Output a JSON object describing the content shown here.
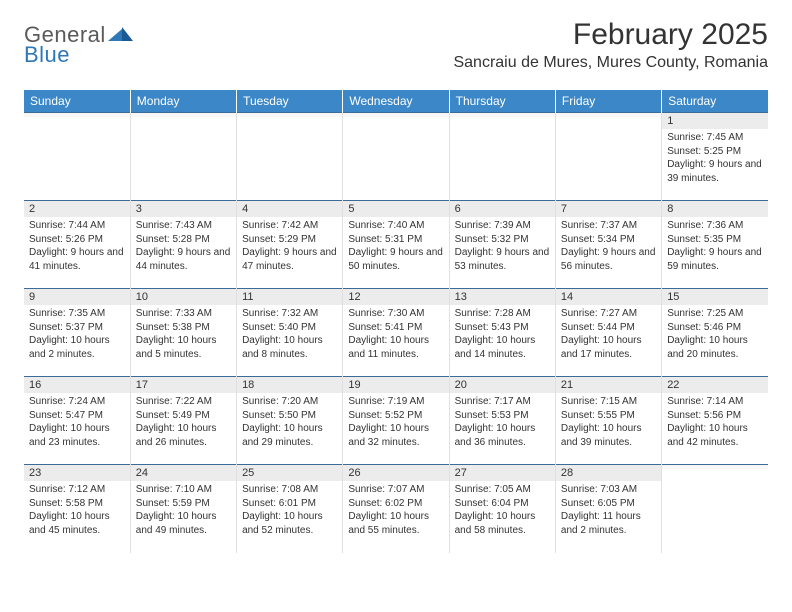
{
  "brand": {
    "part1": "General",
    "part2": "Blue"
  },
  "title": "February 2025",
  "location": "Sancraiu de Mures, Mures County, Romania",
  "columns": [
    "Sunday",
    "Monday",
    "Tuesday",
    "Wednesday",
    "Thursday",
    "Friday",
    "Saturday"
  ],
  "colors": {
    "header_bg": "#3b87c8",
    "header_text": "#ffffff",
    "daynum_bg": "#ececec",
    "row_divider": "#3b6b9a",
    "text": "#333333",
    "logo_gray": "#5a5a5a",
    "logo_blue": "#2f78b7"
  },
  "weeks": [
    [
      {
        "n": "",
        "sunrise": "",
        "sunset": "",
        "daylight": ""
      },
      {
        "n": "",
        "sunrise": "",
        "sunset": "",
        "daylight": ""
      },
      {
        "n": "",
        "sunrise": "",
        "sunset": "",
        "daylight": ""
      },
      {
        "n": "",
        "sunrise": "",
        "sunset": "",
        "daylight": ""
      },
      {
        "n": "",
        "sunrise": "",
        "sunset": "",
        "daylight": ""
      },
      {
        "n": "",
        "sunrise": "",
        "sunset": "",
        "daylight": ""
      },
      {
        "n": "1",
        "sunrise": "Sunrise: 7:45 AM",
        "sunset": "Sunset: 5:25 PM",
        "daylight": "Daylight: 9 hours and 39 minutes."
      }
    ],
    [
      {
        "n": "2",
        "sunrise": "Sunrise: 7:44 AM",
        "sunset": "Sunset: 5:26 PM",
        "daylight": "Daylight: 9 hours and 41 minutes."
      },
      {
        "n": "3",
        "sunrise": "Sunrise: 7:43 AM",
        "sunset": "Sunset: 5:28 PM",
        "daylight": "Daylight: 9 hours and 44 minutes."
      },
      {
        "n": "4",
        "sunrise": "Sunrise: 7:42 AM",
        "sunset": "Sunset: 5:29 PM",
        "daylight": "Daylight: 9 hours and 47 minutes."
      },
      {
        "n": "5",
        "sunrise": "Sunrise: 7:40 AM",
        "sunset": "Sunset: 5:31 PM",
        "daylight": "Daylight: 9 hours and 50 minutes."
      },
      {
        "n": "6",
        "sunrise": "Sunrise: 7:39 AM",
        "sunset": "Sunset: 5:32 PM",
        "daylight": "Daylight: 9 hours and 53 minutes."
      },
      {
        "n": "7",
        "sunrise": "Sunrise: 7:37 AM",
        "sunset": "Sunset: 5:34 PM",
        "daylight": "Daylight: 9 hours and 56 minutes."
      },
      {
        "n": "8",
        "sunrise": "Sunrise: 7:36 AM",
        "sunset": "Sunset: 5:35 PM",
        "daylight": "Daylight: 9 hours and 59 minutes."
      }
    ],
    [
      {
        "n": "9",
        "sunrise": "Sunrise: 7:35 AM",
        "sunset": "Sunset: 5:37 PM",
        "daylight": "Daylight: 10 hours and 2 minutes."
      },
      {
        "n": "10",
        "sunrise": "Sunrise: 7:33 AM",
        "sunset": "Sunset: 5:38 PM",
        "daylight": "Daylight: 10 hours and 5 minutes."
      },
      {
        "n": "11",
        "sunrise": "Sunrise: 7:32 AM",
        "sunset": "Sunset: 5:40 PM",
        "daylight": "Daylight: 10 hours and 8 minutes."
      },
      {
        "n": "12",
        "sunrise": "Sunrise: 7:30 AM",
        "sunset": "Sunset: 5:41 PM",
        "daylight": "Daylight: 10 hours and 11 minutes."
      },
      {
        "n": "13",
        "sunrise": "Sunrise: 7:28 AM",
        "sunset": "Sunset: 5:43 PM",
        "daylight": "Daylight: 10 hours and 14 minutes."
      },
      {
        "n": "14",
        "sunrise": "Sunrise: 7:27 AM",
        "sunset": "Sunset: 5:44 PM",
        "daylight": "Daylight: 10 hours and 17 minutes."
      },
      {
        "n": "15",
        "sunrise": "Sunrise: 7:25 AM",
        "sunset": "Sunset: 5:46 PM",
        "daylight": "Daylight: 10 hours and 20 minutes."
      }
    ],
    [
      {
        "n": "16",
        "sunrise": "Sunrise: 7:24 AM",
        "sunset": "Sunset: 5:47 PM",
        "daylight": "Daylight: 10 hours and 23 minutes."
      },
      {
        "n": "17",
        "sunrise": "Sunrise: 7:22 AM",
        "sunset": "Sunset: 5:49 PM",
        "daylight": "Daylight: 10 hours and 26 minutes."
      },
      {
        "n": "18",
        "sunrise": "Sunrise: 7:20 AM",
        "sunset": "Sunset: 5:50 PM",
        "daylight": "Daylight: 10 hours and 29 minutes."
      },
      {
        "n": "19",
        "sunrise": "Sunrise: 7:19 AM",
        "sunset": "Sunset: 5:52 PM",
        "daylight": "Daylight: 10 hours and 32 minutes."
      },
      {
        "n": "20",
        "sunrise": "Sunrise: 7:17 AM",
        "sunset": "Sunset: 5:53 PM",
        "daylight": "Daylight: 10 hours and 36 minutes."
      },
      {
        "n": "21",
        "sunrise": "Sunrise: 7:15 AM",
        "sunset": "Sunset: 5:55 PM",
        "daylight": "Daylight: 10 hours and 39 minutes."
      },
      {
        "n": "22",
        "sunrise": "Sunrise: 7:14 AM",
        "sunset": "Sunset: 5:56 PM",
        "daylight": "Daylight: 10 hours and 42 minutes."
      }
    ],
    [
      {
        "n": "23",
        "sunrise": "Sunrise: 7:12 AM",
        "sunset": "Sunset: 5:58 PM",
        "daylight": "Daylight: 10 hours and 45 minutes."
      },
      {
        "n": "24",
        "sunrise": "Sunrise: 7:10 AM",
        "sunset": "Sunset: 5:59 PM",
        "daylight": "Daylight: 10 hours and 49 minutes."
      },
      {
        "n": "25",
        "sunrise": "Sunrise: 7:08 AM",
        "sunset": "Sunset: 6:01 PM",
        "daylight": "Daylight: 10 hours and 52 minutes."
      },
      {
        "n": "26",
        "sunrise": "Sunrise: 7:07 AM",
        "sunset": "Sunset: 6:02 PM",
        "daylight": "Daylight: 10 hours and 55 minutes."
      },
      {
        "n": "27",
        "sunrise": "Sunrise: 7:05 AM",
        "sunset": "Sunset: 6:04 PM",
        "daylight": "Daylight: 10 hours and 58 minutes."
      },
      {
        "n": "28",
        "sunrise": "Sunrise: 7:03 AM",
        "sunset": "Sunset: 6:05 PM",
        "daylight": "Daylight: 11 hours and 2 minutes."
      },
      {
        "n": "",
        "sunrise": "",
        "sunset": "",
        "daylight": ""
      }
    ]
  ]
}
